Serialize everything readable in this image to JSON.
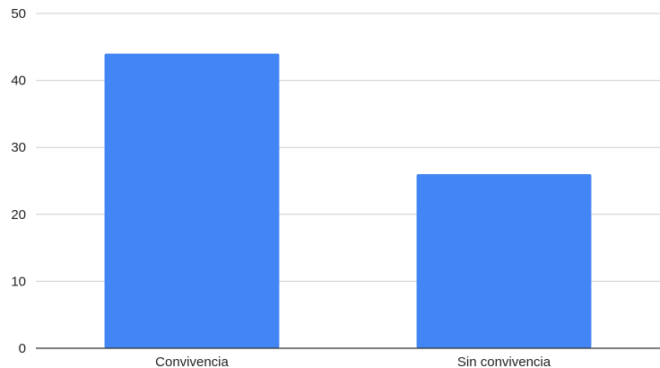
{
  "chart_data": {
    "type": "bar",
    "categories": [
      "Convivencia",
      "Sin convivencia"
    ],
    "values": [
      44,
      26
    ],
    "ylim": [
      0,
      50
    ],
    "yticks": [
      0,
      10,
      20,
      30,
      40,
      50
    ],
    "grid": true,
    "bar_color": "#4285f4",
    "title": "",
    "xlabel": "",
    "ylabel": ""
  }
}
